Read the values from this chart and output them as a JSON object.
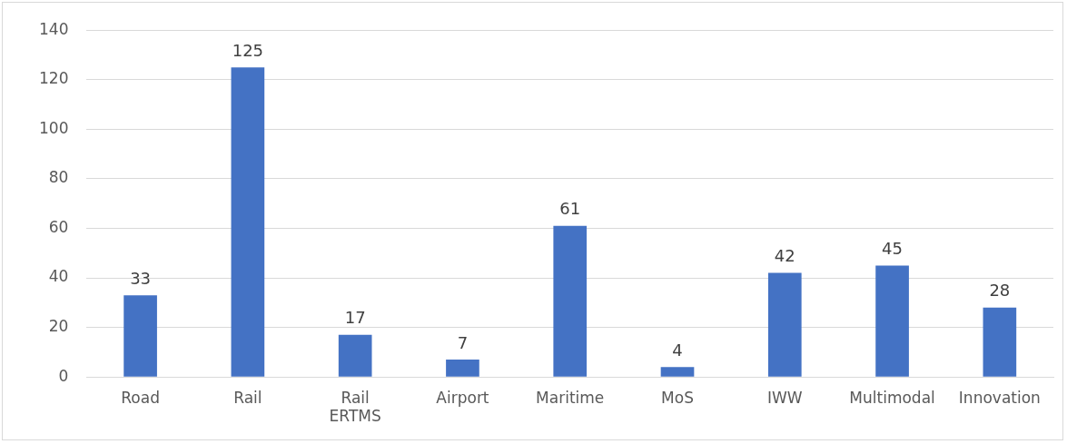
{
  "chart_data": {
    "type": "bar",
    "categories": [
      "Road",
      "Rail",
      "Rail ERTMS",
      "Airport",
      "Maritime",
      "MoS",
      "IWW",
      "Multimodal",
      "Innovation"
    ],
    "values": [
      33,
      125,
      17,
      7,
      61,
      4,
      42,
      45,
      28
    ],
    "color": "#4472c4",
    "ylim": [
      0,
      140
    ],
    "yticks": [
      0,
      20,
      40,
      60,
      80,
      100,
      120,
      140
    ],
    "grid": "y",
    "legend": false,
    "data_labels": true
  }
}
